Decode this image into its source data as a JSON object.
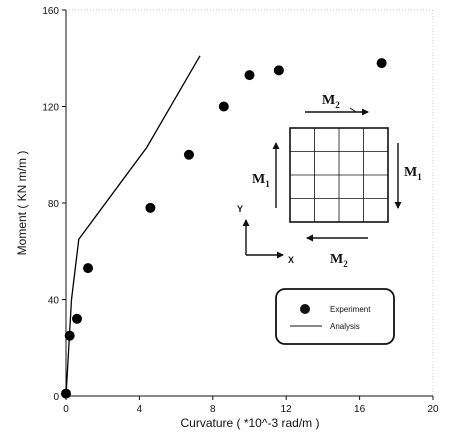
{
  "chart_data": {
    "type": "scatter",
    "title": "",
    "xlabel": "Curvature ( *10^-3 rad/m )",
    "ylabel": "Moment ( KN m/m )",
    "xlim": [
      0,
      20
    ],
    "ylim": [
      0,
      160
    ],
    "xticks": [
      0,
      4,
      8,
      12,
      16,
      20
    ],
    "yticks": [
      0,
      40,
      80,
      120,
      160
    ],
    "grid": false,
    "legend_position": "lower-right",
    "series": [
      {
        "name": "Experiment",
        "kind": "markers",
        "color": "#000000",
        "points": [
          {
            "x": 0.0,
            "y": 1
          },
          {
            "x": 0.2,
            "y": 25
          },
          {
            "x": 0.6,
            "y": 32
          },
          {
            "x": 1.2,
            "y": 53
          },
          {
            "x": 4.6,
            "y": 78
          },
          {
            "x": 6.7,
            "y": 100
          },
          {
            "x": 8.6,
            "y": 120
          },
          {
            "x": 10.0,
            "y": 133
          },
          {
            "x": 11.6,
            "y": 135
          },
          {
            "x": 17.2,
            "y": 138
          }
        ]
      },
      {
        "name": "Analysis",
        "kind": "line",
        "color": "#000000",
        "points": [
          {
            "x": 0.0,
            "y": 0
          },
          {
            "x": 0.3,
            "y": 40
          },
          {
            "x": 0.7,
            "y": 65
          },
          {
            "x": 4.4,
            "y": 103
          },
          {
            "x": 7.3,
            "y": 141
          }
        ]
      }
    ],
    "inset": {
      "top_label": "M",
      "top_sub": "2",
      "bottom_label": "M",
      "bottom_sub": "2",
      "left_label": "M",
      "left_sub": "1",
      "right_label": "M",
      "right_sub": "1",
      "axis_y": "Y",
      "axis_x": "X",
      "grid_divisions": 4
    }
  }
}
